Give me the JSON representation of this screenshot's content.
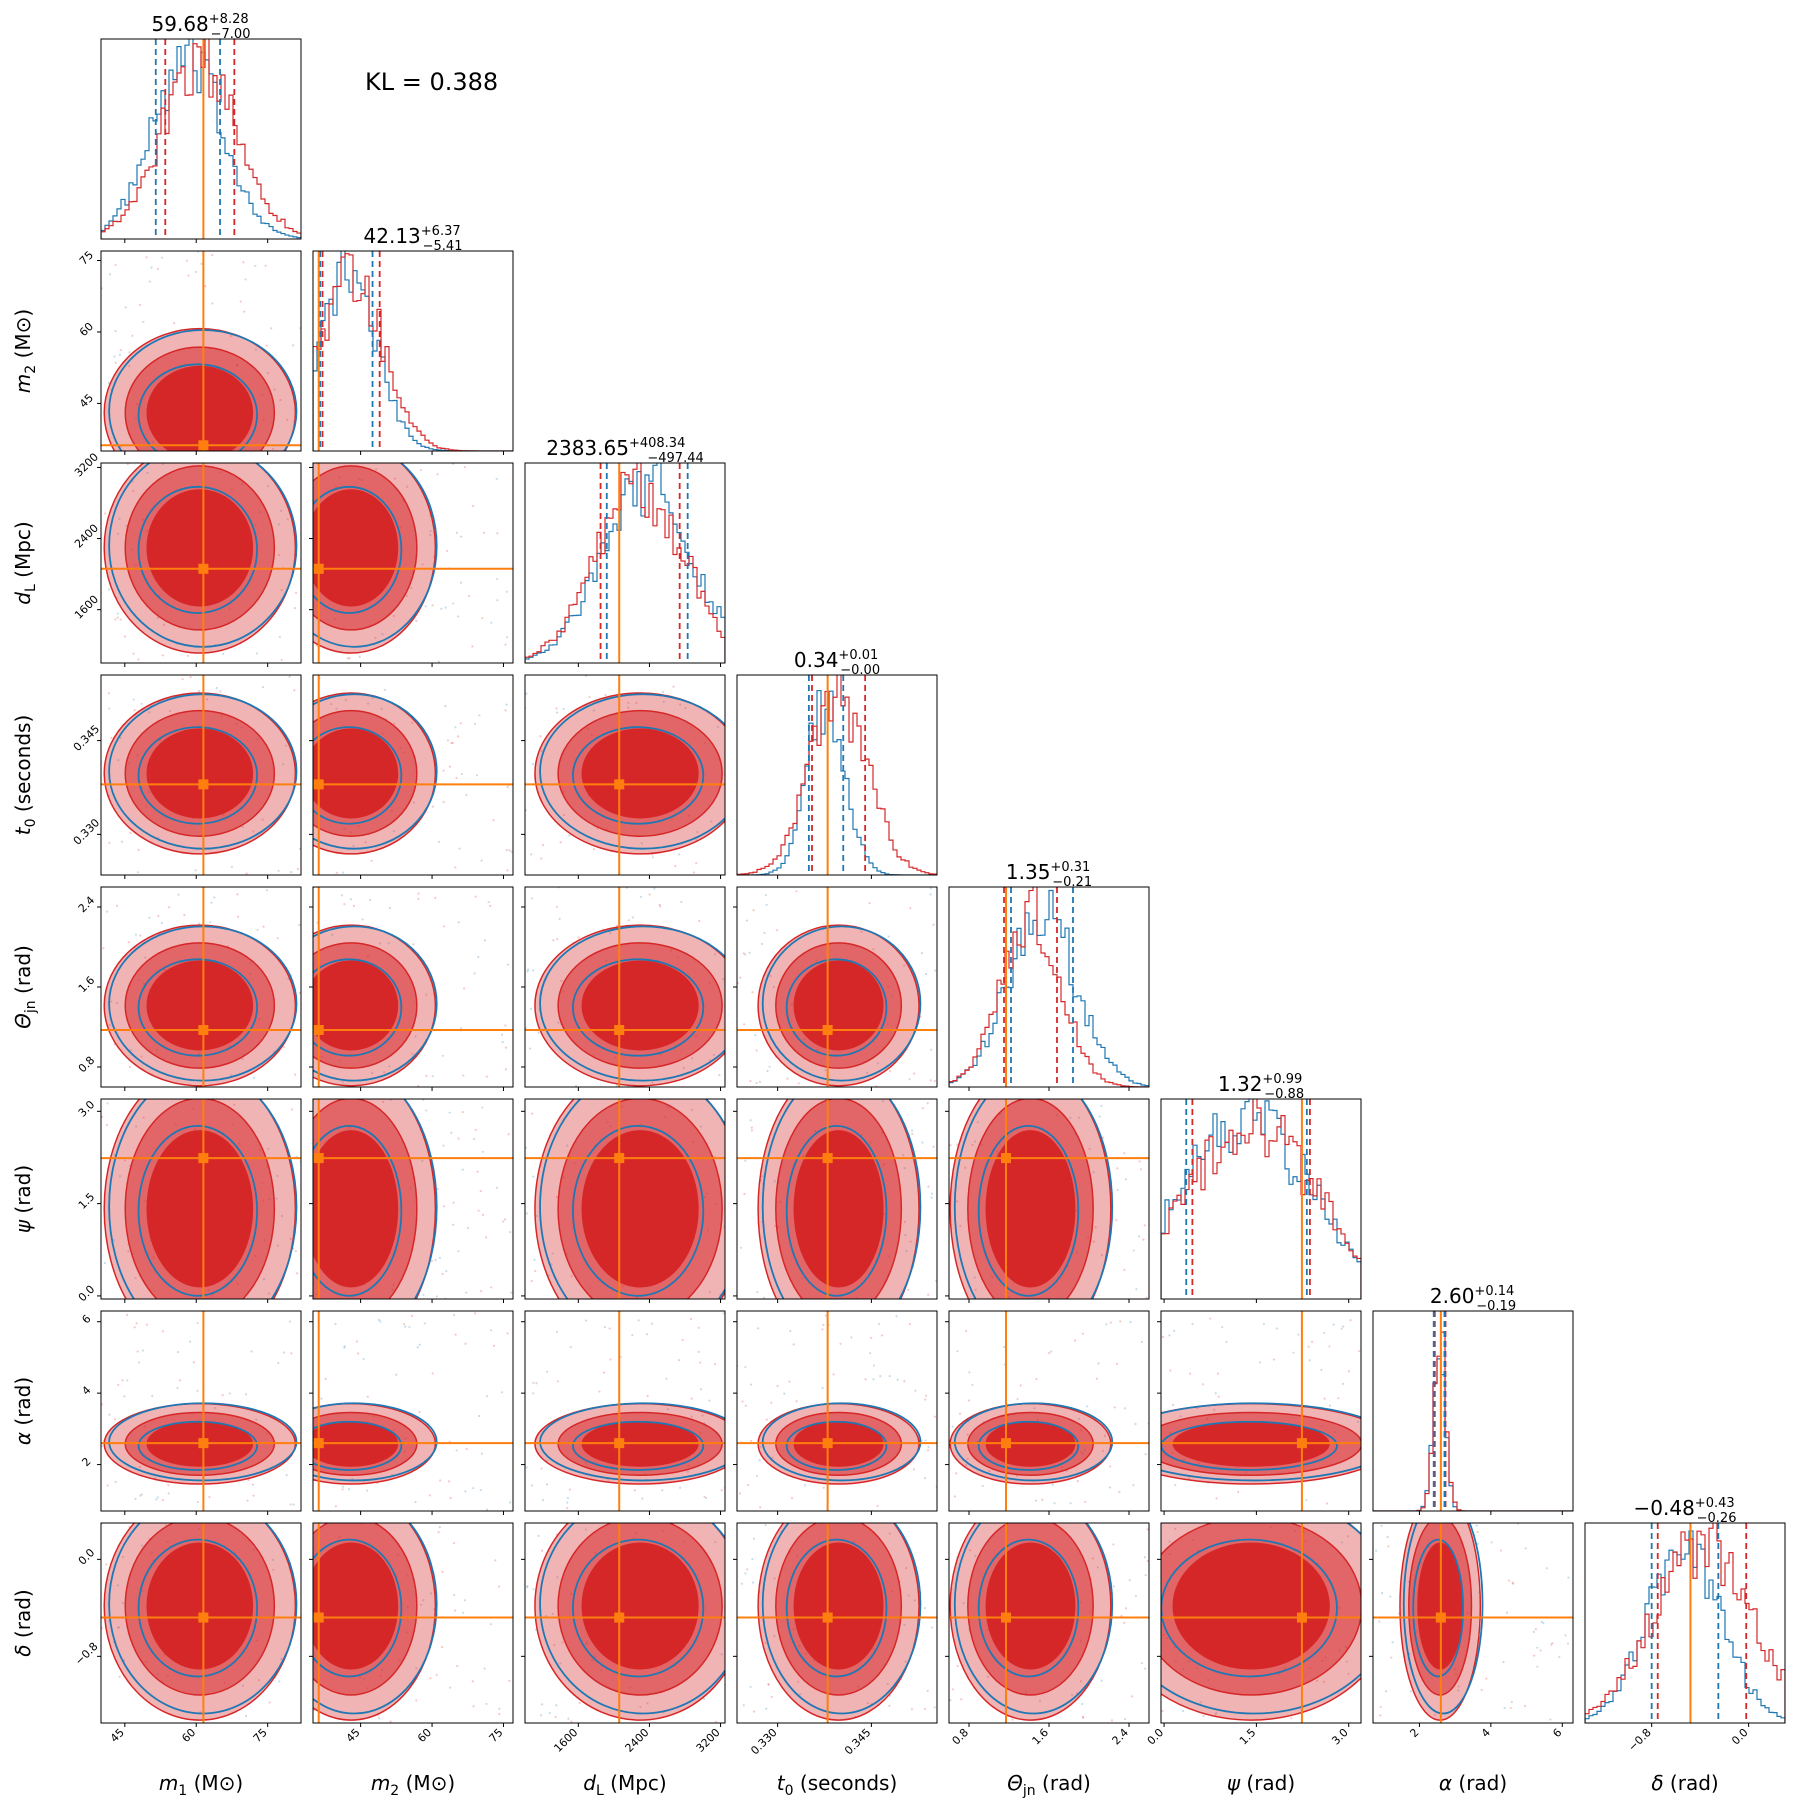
{
  "chart_data": {
    "type": "corner",
    "annotation": "KL = 0.388",
    "colors": {
      "series_a": "#d62728",
      "series_b": "#1f77b4",
      "truth": "#ff7f0e"
    },
    "parameters": [
      {
        "label_main": "m",
        "label_sub": "1",
        "label_unit": "(M⊙)",
        "range": [
          40,
          82
        ],
        "ticks": [
          "45",
          "60",
          "75"
        ],
        "tick_values": [
          45,
          60,
          75
        ],
        "truth": 61.5,
        "median": "59.68",
        "plus": "+8.28",
        "minus": "−7.00",
        "q_a": [
          53.5,
          68
        ],
        "q_b": [
          51.5,
          65
        ]
      },
      {
        "label_main": "m",
        "label_sub": "2",
        "label_unit": "(M⊙)",
        "range": [
          35,
          77
        ],
        "ticks": [
          "45",
          "60",
          "75"
        ],
        "tick_values": [
          45,
          60,
          75
        ],
        "truth": 36.2,
        "median": "42.13",
        "plus": "+6.37",
        "minus": "−5.41",
        "q_a": [
          37,
          49
        ],
        "q_b": [
          36.5,
          47.5
        ]
      },
      {
        "label_main": "d",
        "label_sub": "L",
        "label_unit": "(Mpc)",
        "range": [
          1000,
          3250
        ],
        "ticks": [
          "1600",
          "2400",
          "3200"
        ],
        "tick_values": [
          1600,
          2400,
          3200
        ],
        "truth": 2060,
        "median": "2383.65",
        "plus": "+408.34",
        "minus": "−497.44",
        "q_a": [
          1850,
          2740
        ],
        "q_b": [
          1920,
          2830
        ]
      },
      {
        "label_main": "t",
        "label_sub": "0",
        "label_unit": "(seconds)",
        "range": [
          0.3235,
          0.3555
        ],
        "ticks": [
          "0.330",
          "0.345"
        ],
        "tick_values": [
          0.33,
          0.345
        ],
        "truth": 0.338,
        "median": "0.34",
        "plus": "+0.01",
        "minus": "−0.00",
        "q_a": [
          0.3355,
          0.344
        ],
        "q_b": [
          0.335,
          0.3405
        ]
      },
      {
        "label_main": "Θ",
        "label_sub": "jn",
        "label_unit": "(rad)",
        "range": [
          0.6,
          2.6
        ],
        "ticks": [
          "0.8",
          "1.6",
          "2.4"
        ],
        "tick_values": [
          0.8,
          1.6,
          2.4
        ],
        "truth": 1.17,
        "median": "1.35",
        "plus": "+0.31",
        "minus": "−0.21",
        "q_a": [
          1.15,
          1.68
        ],
        "q_b": [
          1.22,
          1.84
        ]
      },
      {
        "label_main": "ψ",
        "label_sub": "",
        "label_unit": "(rad)",
        "range": [
          -0.05,
          3.2
        ],
        "ticks": [
          "0.0",
          "1.5",
          "3.0"
        ],
        "tick_values": [
          0.0,
          1.5,
          3.0
        ],
        "truth": 2.24,
        "median": "1.32",
        "plus": "+0.99",
        "minus": "−0.88",
        "q_a": [
          0.46,
          2.37
        ],
        "q_b": [
          0.36,
          2.32
        ]
      },
      {
        "label_main": "α",
        "label_sub": "",
        "label_unit": "(rad)",
        "range": [
          0.7,
          6.3
        ],
        "ticks": [
          "2",
          "4",
          "6"
        ],
        "tick_values": [
          2,
          4,
          6
        ],
        "truth": 2.6,
        "median": "2.60",
        "plus": "+0.14",
        "minus": "−0.19",
        "q_a": [
          2.43,
          2.73
        ],
        "q_b": [
          2.4,
          2.7
        ]
      },
      {
        "label_main": "δ",
        "label_sub": "",
        "label_unit": "(rad)",
        "range": [
          -1.35,
          0.3
        ],
        "ticks": [
          "−0.8",
          "0.0"
        ],
        "tick_values": [
          -0.8,
          0.0
        ],
        "truth": -0.48,
        "median": "−0.48",
        "plus": "+0.43",
        "minus": "−0.26",
        "q_a": [
          -0.75,
          -0.02
        ],
        "q_b": [
          -0.8,
          -0.25
        ]
      }
    ]
  }
}
